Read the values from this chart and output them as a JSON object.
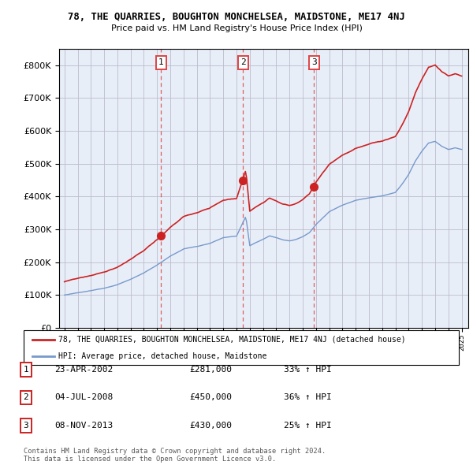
{
  "title": "78, THE QUARRIES, BOUGHTON MONCHELSEA, MAIDSTONE, ME17 4NJ",
  "subtitle": "Price paid vs. HM Land Registry's House Price Index (HPI)",
  "legend_red": "78, THE QUARRIES, BOUGHTON MONCHELSEA, MAIDSTONE, ME17 4NJ (detached house)",
  "legend_blue": "HPI: Average price, detached house, Maidstone",
  "transactions": [
    {
      "num": 1,
      "date": "23-APR-2002",
      "price": "£281,000",
      "pct": "33% ↑ HPI",
      "year": 2002.3,
      "value": 281000
    },
    {
      "num": 2,
      "date": "04-JUL-2008",
      "price": "£450,000",
      "pct": "36% ↑ HPI",
      "year": 2008.5,
      "value": 450000
    },
    {
      "num": 3,
      "date": "08-NOV-2013",
      "price": "£430,000",
      "pct": "25% ↑ HPI",
      "year": 2013.85,
      "value": 430000
    }
  ],
  "footer1": "Contains HM Land Registry data © Crown copyright and database right 2024.",
  "footer2": "This data is licensed under the Open Government Licence v3.0.",
  "ylim": [
    0,
    850000
  ],
  "yticks": [
    0,
    100000,
    200000,
    300000,
    400000,
    500000,
    600000,
    700000,
    800000
  ],
  "red_color": "#cc2222",
  "blue_color": "#7799cc",
  "chart_bg": "#e8eef8",
  "vline_color": "#dd4444",
  "background_color": "#ffffff",
  "grid_color": "#bbbbcc"
}
